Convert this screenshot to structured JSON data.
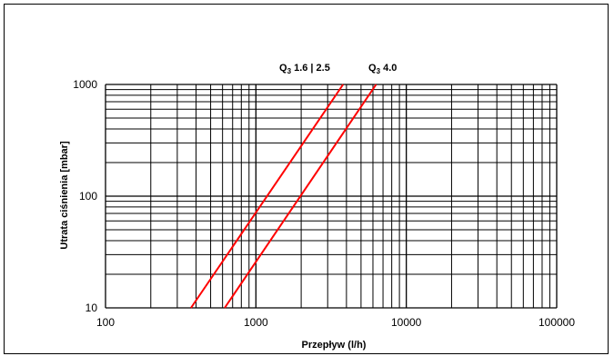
{
  "chart_data": {
    "type": "line",
    "title": "",
    "xlabel": "Przepływ  (l/h)",
    "ylabel": "Utrata ciśnienia [mbar]",
    "xscale": "log",
    "yscale": "log",
    "xlim": [
      100,
      100000
    ],
    "ylim": [
      10,
      1000
    ],
    "x_ticks": [
      "100",
      "1000",
      "10000",
      "100000"
    ],
    "y_ticks": [
      "10",
      "100",
      "1000"
    ],
    "grid": true,
    "line_color": "#ff0000",
    "series": [
      {
        "name": "Q3 1.6 | 2.5",
        "label_main": "Q",
        "label_sub": "3",
        "label_rest": " 1.6  |  2.5",
        "x": [
          370,
          3800
        ],
        "y": [
          10,
          1000
        ]
      },
      {
        "name": "Q3 4.0",
        "label_main": "Q",
        "label_sub": "3",
        "label_rest": " 4.0",
        "x": [
          620,
          6300
        ],
        "y": [
          10,
          1000
        ]
      }
    ]
  }
}
